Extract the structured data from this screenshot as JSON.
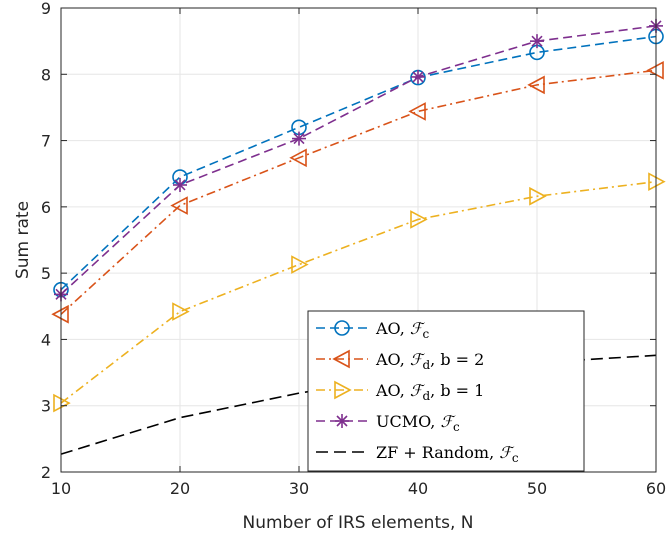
{
  "chart_data": {
    "type": "line",
    "xlabel": "Number of IRS elements, N",
    "ylabel": "Sum rate",
    "x": [
      10,
      20,
      30,
      40,
      50,
      60
    ],
    "xlim": [
      10,
      60
    ],
    "ylim": [
      2,
      9
    ],
    "xticks": [
      "10",
      "20",
      "30",
      "40",
      "50",
      "60"
    ],
    "yticks": [
      "2",
      "3",
      "4",
      "5",
      "6",
      "7",
      "8",
      "9"
    ],
    "grid": true,
    "legend_position": "bottom-right",
    "series": [
      {
        "name": "AO, 𝓕c",
        "legend": {
          "pre": "AO, ",
          "sym": "ℱ",
          "sub": "c",
          "post": ""
        },
        "values": [
          4.75,
          6.45,
          7.2,
          7.95,
          8.33,
          8.57
        ],
        "color": "#0072BD",
        "dash": "dashed",
        "marker": "circle"
      },
      {
        "name": "AO, 𝓕d, b = 2",
        "legend": {
          "pre": "AO, ",
          "sym": "ℱ",
          "sub": "d",
          "post": ", b = 2"
        },
        "values": [
          4.38,
          6.02,
          6.74,
          7.44,
          7.84,
          8.06
        ],
        "color": "#D95319",
        "dash": "dashdot",
        "marker": "triangle-left"
      },
      {
        "name": "AO, 𝓕d, b = 1",
        "legend": {
          "pre": "AO, ",
          "sym": "ℱ",
          "sub": "d",
          "post": ", b = 1"
        },
        "values": [
          3.04,
          4.42,
          5.13,
          5.81,
          6.16,
          6.38
        ],
        "color": "#EDB120",
        "dash": "dashdot",
        "marker": "triangle-right"
      },
      {
        "name": "UCMO, 𝓕c",
        "legend": {
          "pre": "UCMO, ",
          "sym": "ℱ",
          "sub": "c",
          "post": ""
        },
        "values": [
          4.68,
          6.33,
          7.03,
          7.96,
          8.5,
          8.73
        ],
        "color": "#7E2F8E",
        "dash": "dashed",
        "marker": "asterisk"
      },
      {
        "name": "ZF + Random, 𝓕c",
        "legend": {
          "pre": "ZF + Random, ",
          "sym": "ℱ",
          "sub": "c",
          "post": ""
        },
        "values": [
          2.27,
          2.82,
          3.19,
          3.48,
          3.65,
          3.76
        ],
        "color": "#000000",
        "dash": "longdash",
        "marker": "none"
      }
    ]
  }
}
